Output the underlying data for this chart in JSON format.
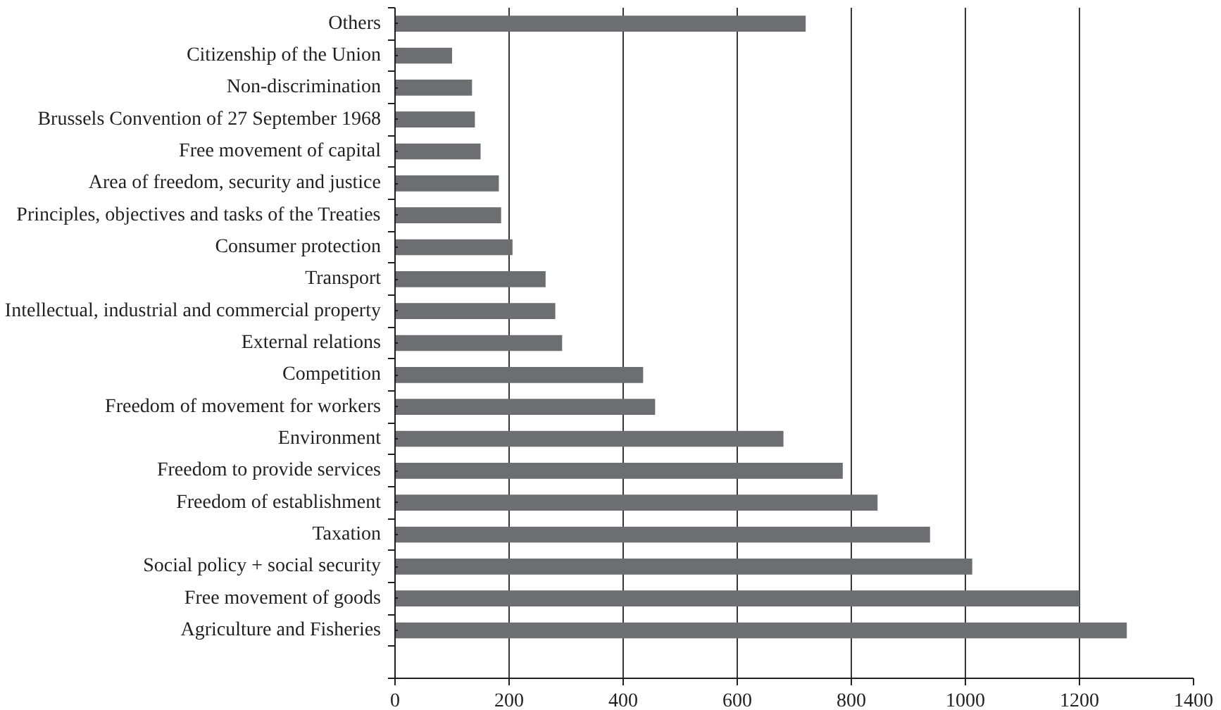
{
  "chart_data": {
    "type": "bar",
    "orientation": "horizontal",
    "categories": [
      "Others",
      "Citizenship of the Union",
      "Non-discrimination",
      "Brussels Convention of 27 September 1968",
      "Free movement of capital",
      "Area of freedom, security and justice",
      "Principles, objectives and tasks of the Treaties",
      "Consumer protection",
      "Transport",
      "Intellectual, industrial and commercial property",
      "External relations",
      "Competition",
      "Freedom of movement for workers",
      "Environment",
      "Freedom to provide services",
      "Freedom of establishment",
      "Taxation",
      "Social policy + social security",
      "Free movement of goods",
      "Agriculture and Fisheries"
    ],
    "values": [
      720,
      100,
      135,
      140,
      150,
      182,
      186,
      206,
      264,
      281,
      293,
      435,
      456,
      681,
      785,
      846,
      938,
      1012,
      1200,
      1283
    ],
    "color": "#6d6e71",
    "xlim": [
      0,
      1400
    ],
    "xticks": [
      0,
      200,
      400,
      600,
      800,
      1000,
      1200,
      1400
    ],
    "grid": "x"
  }
}
